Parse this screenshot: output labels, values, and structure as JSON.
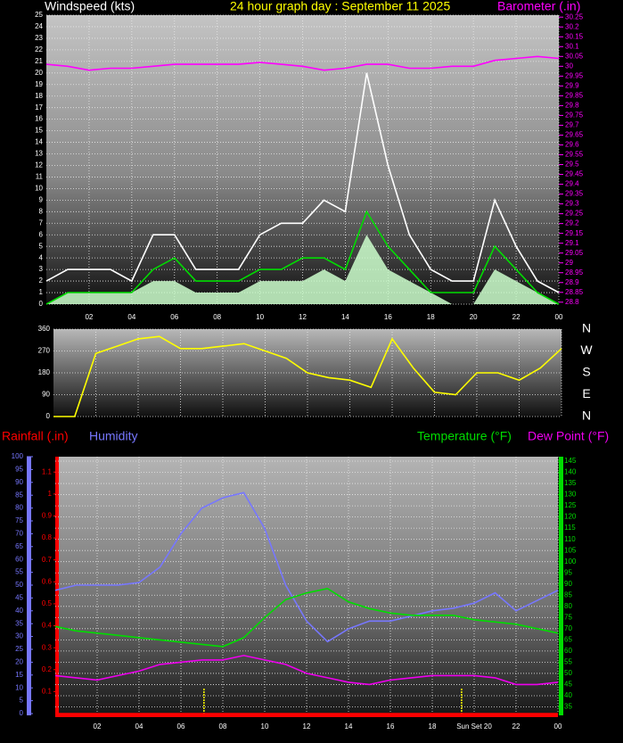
{
  "chart_data": [
    {
      "type": "line",
      "title": "24 hour graph day : September 11 2025",
      "y_label": "Windspeed (kts)",
      "y2_label": "Barometer (.in)",
      "x": [
        0,
        1,
        2,
        3,
        4,
        5,
        6,
        7,
        8,
        9,
        10,
        11,
        12,
        13,
        14,
        15,
        16,
        17,
        18,
        19,
        20,
        21,
        22,
        23,
        24
      ],
      "xlim": [
        0,
        24
      ],
      "xticks": [
        {
          "value": 2,
          "label": "02"
        },
        {
          "value": 4,
          "label": "04"
        },
        {
          "value": 6,
          "label": "06"
        },
        {
          "value": 8,
          "label": "08"
        },
        10,
        12,
        14,
        16,
        18,
        20,
        22,
        {
          "value": 24,
          "label": "00"
        }
      ],
      "ylim": [
        0,
        25
      ],
      "yticks": [
        0,
        1,
        2,
        3,
        4,
        5,
        6,
        7,
        8,
        9,
        10,
        11,
        12,
        13,
        14,
        15,
        16,
        17,
        18,
        19,
        20,
        21,
        22,
        23,
        24,
        25
      ],
      "y2lim": [
        28.79,
        30.26
      ],
      "y2ticks": [
        28.8,
        28.85,
        28.9,
        28.95,
        29,
        29.05,
        29.1,
        29.15,
        29.2,
        29.25,
        29.3,
        29.35,
        29.4,
        29.45,
        29.5,
        29.55,
        29.6,
        29.65,
        29.7,
        29.75,
        29.8,
        29.85,
        29.9,
        29.95,
        30,
        30.05,
        30.1,
        30.15,
        30.2,
        30.25
      ],
      "grid": true,
      "series": [
        {
          "color": "#ccffcc",
          "style": "area",
          "values": [
            0,
            1,
            1,
            1,
            1,
            2,
            2,
            1,
            1,
            1,
            2,
            2,
            2,
            3,
            2,
            6,
            3,
            2,
            1,
            0,
            0,
            3,
            2,
            1,
            0
          ]
        },
        {
          "color": "#ffffff",
          "style": "line",
          "values": [
            2,
            3,
            3,
            3,
            2,
            6,
            6,
            3,
            3,
            3,
            6,
            7,
            7,
            9,
            8,
            20,
            12,
            6,
            3,
            2,
            2,
            9,
            5,
            2,
            1
          ]
        },
        {
          "color": "#00dd00",
          "style": "line",
          "values": [
            0,
            1,
            1,
            1,
            1,
            3,
            4,
            2,
            2,
            2,
            3,
            3,
            4,
            4,
            3,
            8,
            5,
            3,
            1,
            1,
            1,
            5,
            3,
            1,
            0
          ]
        },
        {
          "color": "#ff00ff",
          "style": "line",
          "axis": "y2",
          "values": [
            30.01,
            30.0,
            29.98,
            29.99,
            29.99,
            30.0,
            30.01,
            30.01,
            30.01,
            30.01,
            30.02,
            30.01,
            30.0,
            29.98,
            29.99,
            30.01,
            30.01,
            29.99,
            29.99,
            30.0,
            30.0,
            30.03,
            30.04,
            30.05,
            30.04
          ]
        }
      ]
    },
    {
      "type": "line",
      "x": [
        0,
        1,
        2,
        3,
        4,
        5,
        6,
        7,
        8,
        9,
        10,
        11,
        12,
        13,
        14,
        15,
        16,
        17,
        18,
        19,
        20,
        21,
        22,
        23,
        24
      ],
      "xlim": [
        0,
        24
      ],
      "ylim": [
        0,
        360
      ],
      "yticks": [
        0,
        90,
        180,
        270,
        360
      ],
      "compass": [
        "N",
        "W",
        "S",
        "E",
        "N"
      ],
      "grid": true,
      "series": [
        {
          "color": "#ffff00",
          "style": "line",
          "values": [
            0,
            0,
            260,
            290,
            320,
            330,
            280,
            280,
            290,
            300,
            270,
            240,
            180,
            160,
            150,
            120,
            320,
            200,
            100,
            90,
            180,
            180,
            150,
            200,
            280
          ]
        }
      ]
    },
    {
      "type": "line",
      "x": [
        0,
        1,
        2,
        3,
        4,
        5,
        6,
        7,
        8,
        9,
        10,
        11,
        12,
        13,
        14,
        15,
        16,
        17,
        18,
        19,
        20,
        21,
        22,
        23,
        24
      ],
      "xlim": [
        0,
        24
      ],
      "xticks": [
        {
          "value": 2,
          "label": "02"
        },
        {
          "value": 4,
          "label": "04"
        },
        {
          "value": 6,
          "label": "06"
        },
        {
          "value": 8,
          "label": "08"
        },
        10,
        12,
        14,
        16,
        18,
        {
          "value": 20,
          "label": "Sun Set 20"
        },
        22,
        {
          "value": 24,
          "label": "00"
        }
      ],
      "ylim": [
        0,
        100
      ],
      "yticks": [
        0,
        5,
        10,
        15,
        20,
        25,
        30,
        35,
        40,
        45,
        50,
        55,
        60,
        65,
        70,
        75,
        80,
        85,
        90,
        95,
        100
      ],
      "y2lim": [
        32,
        147
      ],
      "y2ticks": [
        35,
        40,
        45,
        50,
        55,
        60,
        65,
        70,
        75,
        80,
        85,
        90,
        95,
        100,
        105,
        110,
        115,
        120,
        125,
        130,
        135,
        140,
        145
      ],
      "y3lim": [
        0,
        1.17
      ],
      "y3ticks": [
        0.1,
        0.2,
        0.3,
        0.4,
        0.5,
        0.6,
        0.7,
        0.8,
        0.9,
        1,
        1.1
      ],
      "sun_lines": [
        7.1,
        19.4
      ],
      "grid": true,
      "series": [
        {
          "name": "Rainfall (.in)",
          "color": "#ff0000",
          "style": "line",
          "axis": "y3",
          "values": [
            0,
            0,
            0,
            0,
            0,
            0,
            0,
            0,
            0,
            0,
            0,
            0,
            0,
            0,
            0,
            0,
            0,
            0,
            0,
            0,
            0,
            0,
            0,
            0,
            0
          ]
        },
        {
          "name": "Humidity",
          "color": "#7777ff",
          "style": "line",
          "values": [
            48,
            50,
            50,
            50,
            51,
            57,
            70,
            80,
            84,
            86,
            72,
            50,
            36,
            28,
            33,
            36,
            36,
            38,
            40,
            41,
            43,
            47,
            40,
            44,
            48
          ]
        },
        {
          "name": "Temperature (°F)",
          "color": "#00dd00",
          "style": "line",
          "axis": "y2",
          "values": [
            71,
            69,
            68,
            67,
            66,
            65,
            64,
            63,
            62,
            66,
            75,
            83,
            86,
            88,
            82,
            79,
            77,
            76,
            76,
            76,
            74,
            73,
            72,
            70,
            68
          ]
        },
        {
          "name": "Dew Point (°F)",
          "color": "#ee00ee",
          "style": "line",
          "axis": "y2",
          "values": [
            49,
            48,
            47,
            49,
            51,
            54,
            55,
            56,
            56,
            58,
            56,
            54,
            50,
            48,
            46,
            45,
            47,
            48,
            49,
            49,
            49,
            48,
            45,
            45,
            46
          ]
        }
      ]
    }
  ]
}
